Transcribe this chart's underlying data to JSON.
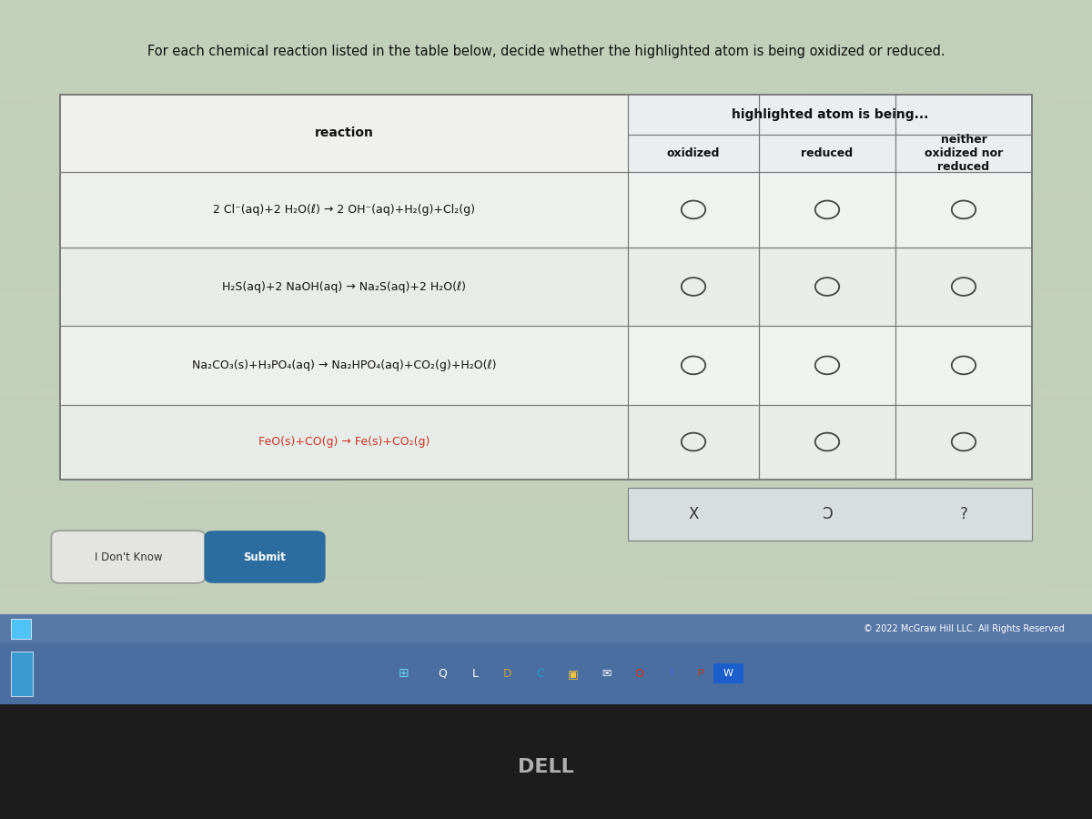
{
  "title": "For each chemical reaction listed in the table below, decide whether the highlighted atom is being oxidized or reduced.",
  "header_col": "reaction",
  "header_cols": [
    "oxidized",
    "reduced",
    "neither\noxidized nor\nreduced"
  ],
  "header_span": "highlighted atom is being...",
  "reactions": [
    "2 Cl⁻(aq)+2 H₂O(ℓ) → 2 OH⁻(aq)+H₂(g)+Cl₂(g)",
    "H₂S(aq)+2 NaOH(aq) → Na₂S(aq)+2 H₂O(ℓ)",
    "Na₂CO₃(s)+H₃PO₄(aq) → Na₂HPO₄(aq)+CO₂(g)+H₂O(ℓ)",
    "FeO(s)+CO(g) → Fe(s)+CO₂(g)"
  ],
  "reaction_colors": [
    "#111111",
    "#111111",
    "#111111",
    "#cc3322"
  ],
  "bg_color": "#c0cdb8",
  "table_bg": "#f0f0ec",
  "header_bg": "#e4e8e0",
  "right_header_bg": "#eaeef0",
  "data_row_bg": [
    "#eef0ec",
    "#e8ece8",
    "#eef0ec",
    "#e8ece8"
  ],
  "data_row_right_bg": [
    "#f0f2f0",
    "#eaecea",
    "#f0f2f0",
    "#eaecea"
  ],
  "border_color": "#7a7a7a",
  "text_color": "#111111",
  "button1_text": "I Don't Know",
  "button2_text": "Submit",
  "button2_color": "#2a6d9e",
  "copyright": "© 2022 McGraw Hill LLC. All Rights Reserved",
  "footer_symbols": [
    "X",
    "Ɔ",
    "?"
  ],
  "symbols_box_bg": "#d8dde0",
  "taskbar_bg": "#4a6ea0",
  "footer_bg": "#5878a8",
  "dell_bg": "#1c1c1c",
  "dell_color": "#b0b0b0"
}
